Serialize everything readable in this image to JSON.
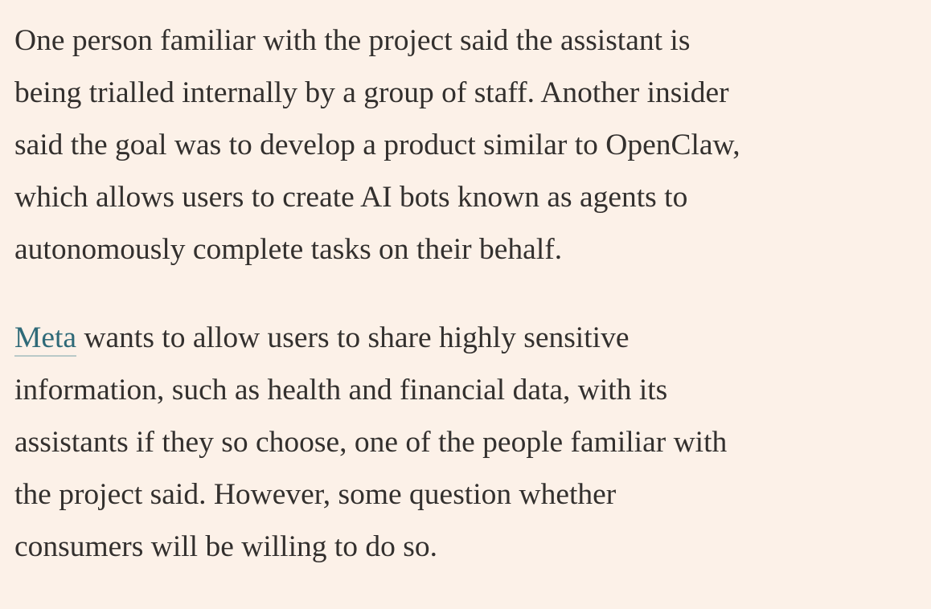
{
  "paragraphs": [
    {
      "lines": [
        "One person familiar with the project said the assistant is",
        "being trialled internally by a group of staff. Another insider",
        "said the goal was to develop a product similar to OpenClaw,",
        "which allows users to create AI bots known as agents to",
        "autonomously complete tasks on their behalf."
      ]
    },
    {
      "link": "Meta",
      "lines": [
        "wants to allow users to share highly sensitive",
        "information, such as health and financial data, with its",
        "assistants if they so choose, one of the people familiar with",
        "the project said. However, some question whether",
        "consumers will be willing to do so."
      ]
    }
  ]
}
